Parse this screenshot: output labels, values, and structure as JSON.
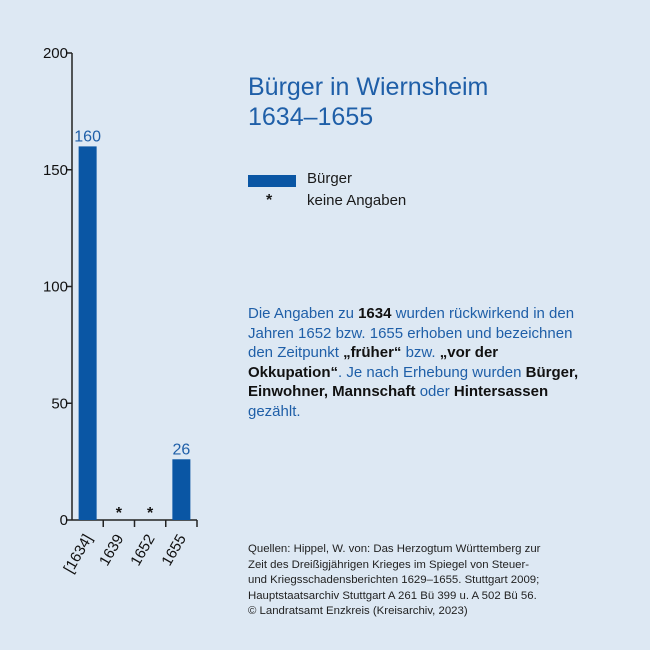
{
  "title": {
    "line1": "Bürger in Wiernsheim",
    "line2": "1634–1655"
  },
  "legend": [
    {
      "label": "Bürger",
      "kind": "bar",
      "color": "#0a56a4"
    },
    {
      "label": "keine Angaben",
      "kind": "star",
      "symbol": "*"
    }
  ],
  "note": {
    "p1": "Die Angaben zu ",
    "b1": "1634",
    "p2": " wurden rückwirkend in den Jahren 1652 bzw. 1655 erhoben und bezeichnen den Zeitpunkt ",
    "b2": "„früher“",
    "p3": " bzw. ",
    "b3": "„vor der Okkupation“",
    "p4": ". Je nach Erhebung wurden ",
    "b4": "Bürger, Einwohner, Mannschaft",
    "p5": " oder ",
    "b5": "Hintersassen",
    "p6": " gezählt."
  },
  "sources": [
    "Quellen: Hippel, W. von: Das Herzogtum Württemberg zur",
    "Zeit des Dreißigjährigen Krieges im Spiegel von Steuer-",
    "und Kriegsschadensberichten 1629–1655. Stuttgart 2009;",
    "Hauptstaatsarchiv Stuttgart A 261 Bü 399 u. A 502 Bü 56.",
    "© Landratsamt Enzkreis (Kreisarchiv, 2023)"
  ],
  "chart_data": {
    "type": "bar",
    "categories": [
      "[1634]",
      "1639",
      "1652",
      "1655"
    ],
    "values": [
      160,
      null,
      null,
      26
    ],
    "missing_symbol": "*",
    "ylim": [
      0,
      200
    ],
    "yticks": [
      0,
      50,
      100,
      150,
      200
    ],
    "grid": false,
    "colors": {
      "bar": "#0a56a4",
      "label": "#1f5fa8",
      "axis": "#222222"
    }
  }
}
